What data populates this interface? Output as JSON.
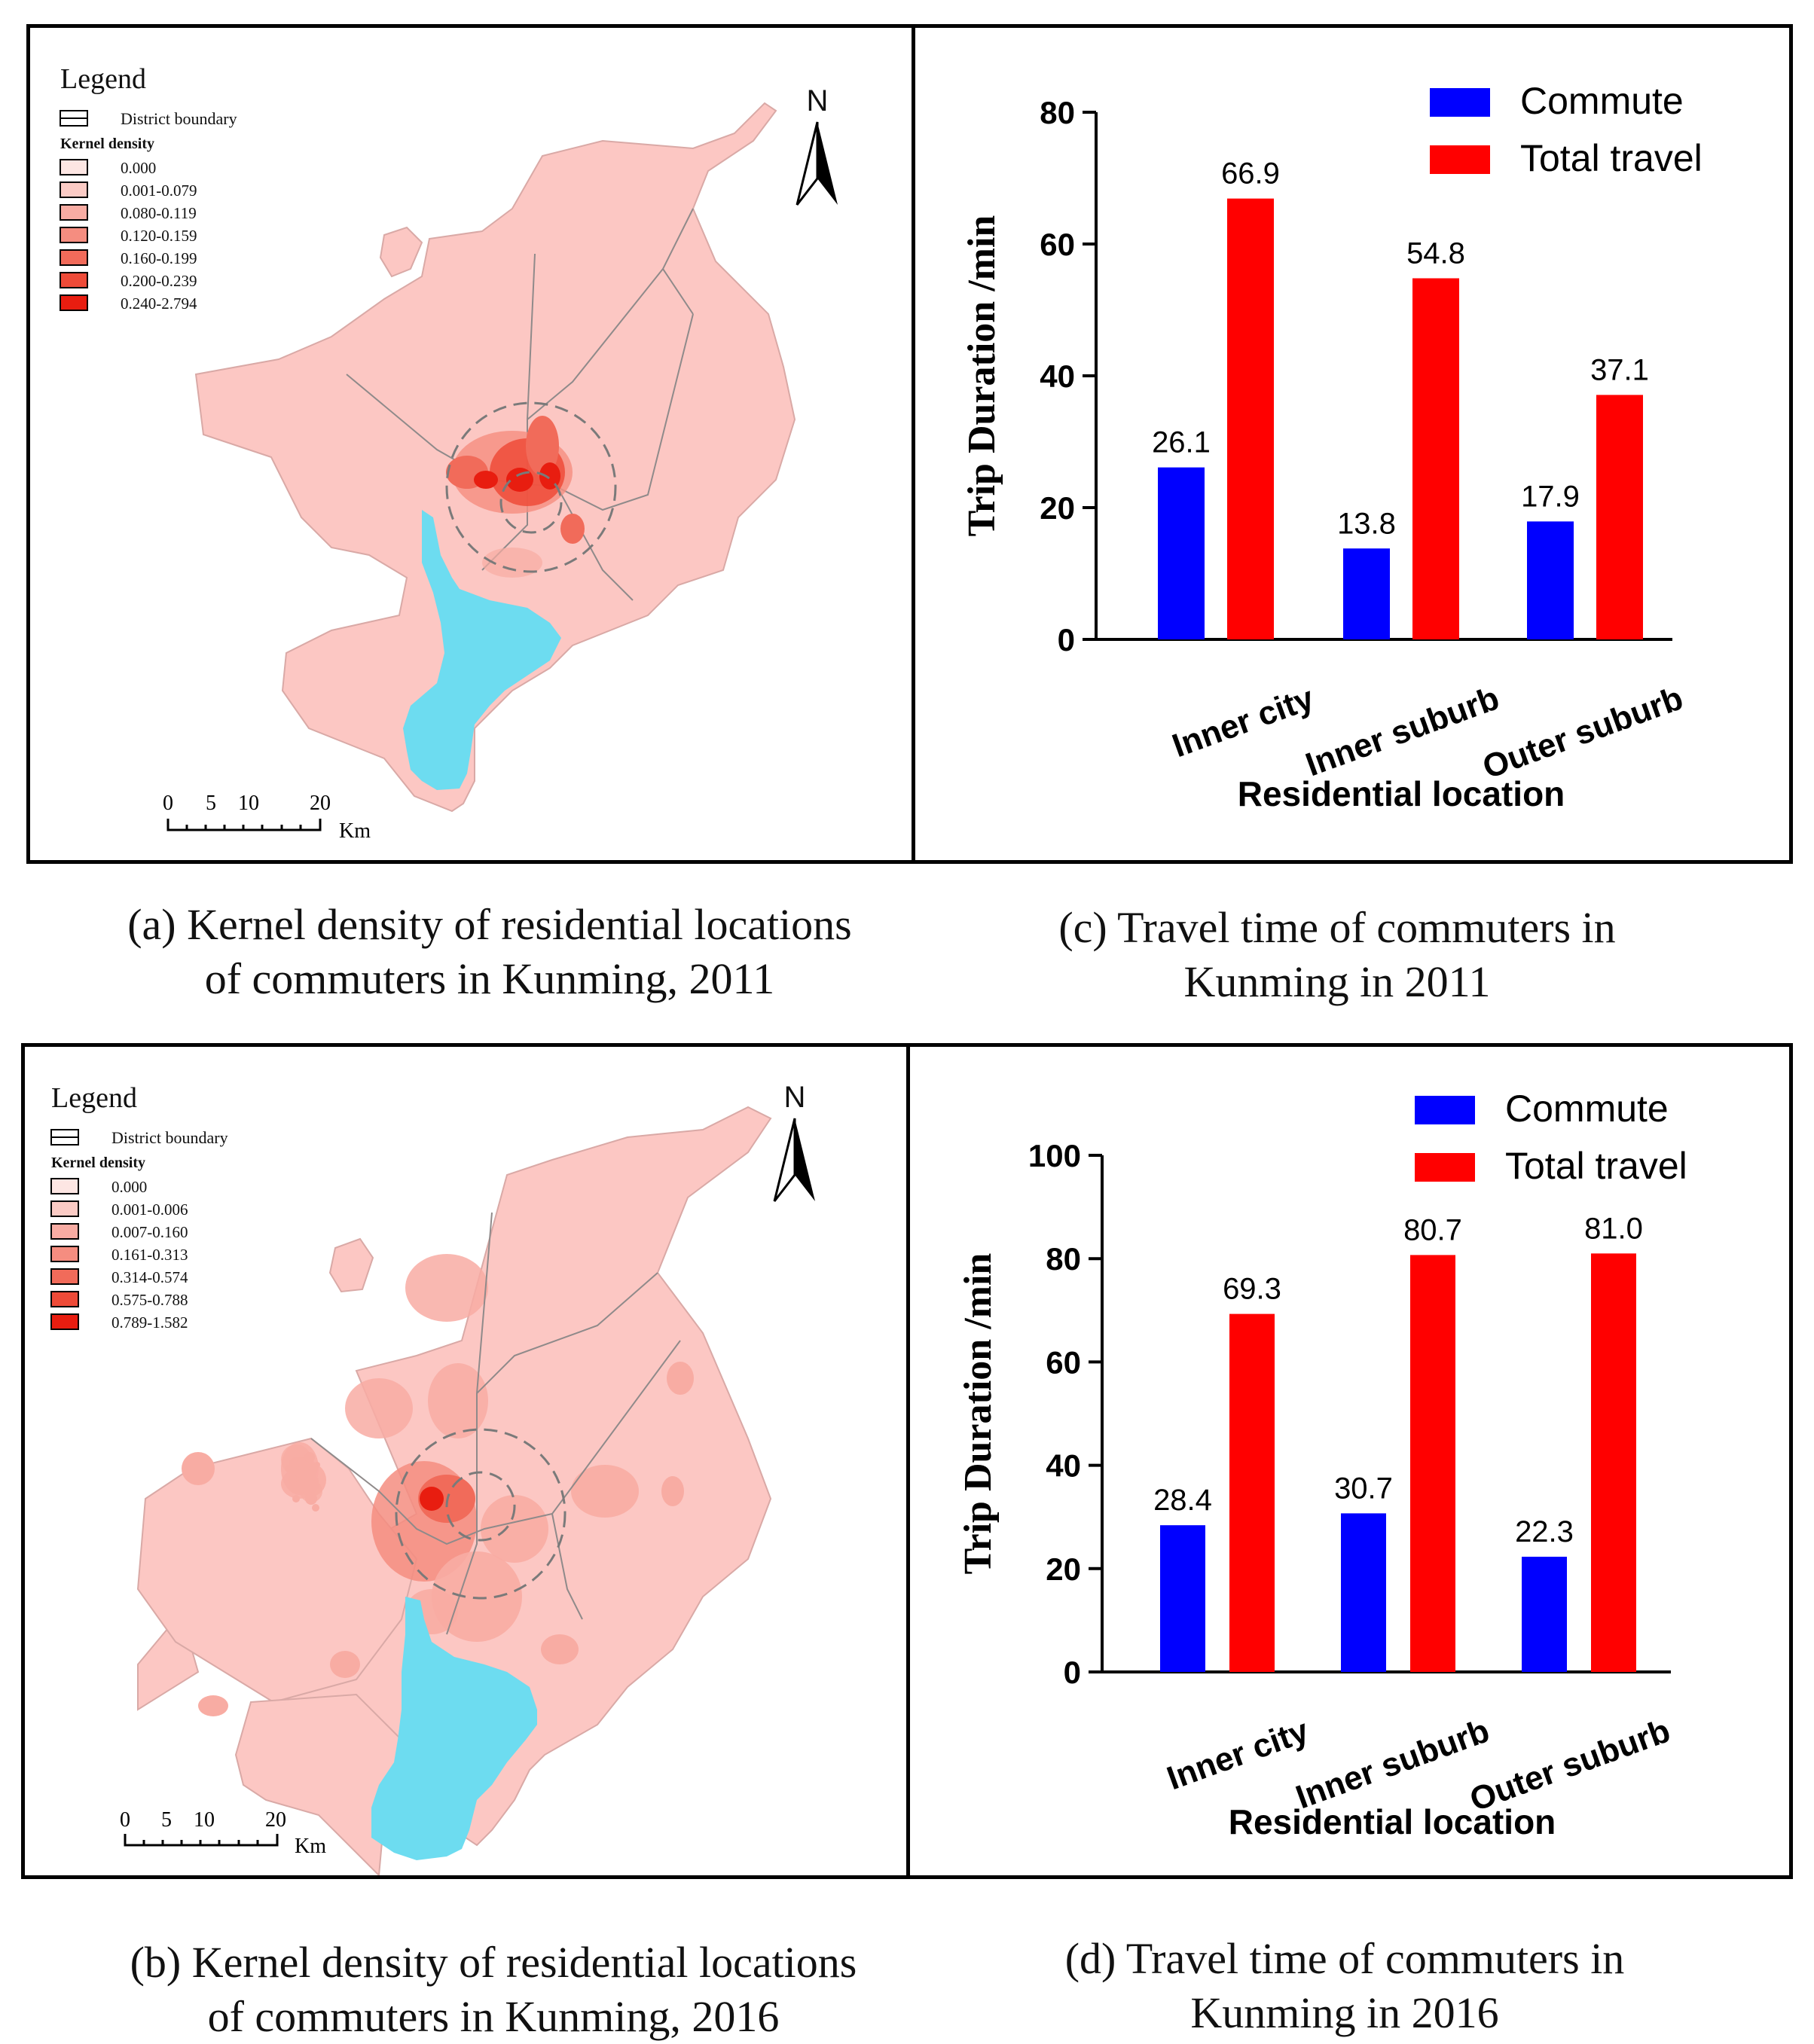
{
  "map_2011": {
    "legend_title": "Legend",
    "boundary_label": "District boundary",
    "density_title": "Kernel density",
    "classes": [
      "0.000",
      "0.001-0.079",
      "0.080-0.119",
      "0.120-0.159",
      "0.160-0.199",
      "0.200-0.239",
      "0.240-2.794"
    ],
    "north": "N",
    "scale_ticks": [
      "0",
      "5",
      "10",
      "20"
    ],
    "scale_unit": "Km"
  },
  "map_2016": {
    "legend_title": "Legend",
    "boundary_label": "District boundary",
    "density_title": "Kernel density",
    "classes": [
      "0.000",
      "0.001-0.006",
      "0.007-0.160",
      "0.161-0.313",
      "0.314-0.574",
      "0.575-0.788",
      "0.789-1.582"
    ],
    "north": "N",
    "scale_ticks": [
      "0",
      "5",
      "10",
      "20"
    ],
    "scale_unit": "Km"
  },
  "colors": {
    "commute": "#0000ff",
    "total": "#ff0000",
    "land": "#fcc7c3",
    "water": "#6ddcf0",
    "ramp": [
      "#fde6e3",
      "#fbcbc5",
      "#f8aca3",
      "#f58d80",
      "#f16b5a",
      "#ee4b38",
      "#e81d10"
    ]
  },
  "captions": {
    "a": [
      "(a) Kernel density of residential locations",
      "of commuters in Kunming, 2011"
    ],
    "b": [
      "(b) Kernel density of residential locations",
      "of commuters in Kunming, 2016"
    ],
    "c": [
      "(c) Travel time of commuters in",
      "Kunming in 2011"
    ],
    "d": [
      "(d) Travel time of commuters in",
      "Kunming in 2016"
    ]
  },
  "chart_data": [
    {
      "type": "bar",
      "categories": [
        "Inner city",
        "Inner suburb",
        "Outer suburb"
      ],
      "series": [
        {
          "name": "Commute",
          "values": [
            26.1,
            13.8,
            17.9
          ]
        },
        {
          "name": "Total travel",
          "values": [
            66.9,
            54.8,
            37.1
          ]
        }
      ],
      "value_labels": [
        [
          "26.1",
          "13.8",
          "17.9"
        ],
        [
          "66.9",
          "54.8",
          "37.1"
        ]
      ],
      "title": "",
      "xlabel": "Residential location",
      "ylabel": "Trip Duration /min",
      "ylim": [
        0,
        80
      ],
      "yticks": [
        0,
        20,
        40,
        60,
        80
      ],
      "legend": "top-right"
    },
    {
      "type": "bar",
      "categories": [
        "Inner city",
        "Inner suburb",
        "Outer suburb"
      ],
      "series": [
        {
          "name": "Commute",
          "values": [
            28.4,
            30.7,
            22.3
          ]
        },
        {
          "name": "Total travel",
          "values": [
            69.3,
            80.7,
            81.0
          ]
        }
      ],
      "value_labels": [
        [
          "28.4",
          "30.7",
          "22.3"
        ],
        [
          "69.3",
          "80.7",
          "81.0"
        ]
      ],
      "title": "",
      "xlabel": "Residential location",
      "ylabel": "Trip Duration /min",
      "ylim": [
        0,
        100
      ],
      "yticks": [
        0,
        20,
        40,
        60,
        80,
        100
      ],
      "legend": "top-right"
    }
  ]
}
